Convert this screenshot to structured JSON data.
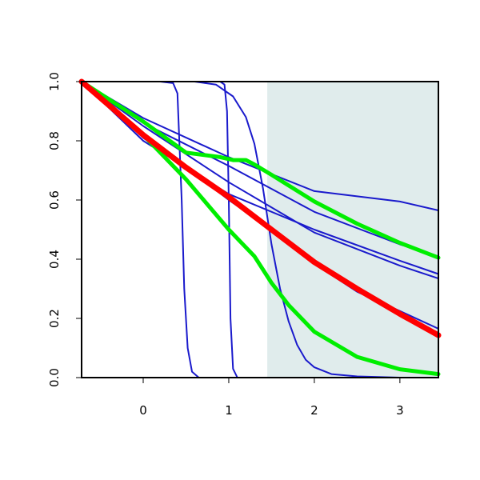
{
  "chart_data": {
    "type": "line",
    "title": "",
    "xlabel": "",
    "ylabel": "",
    "xlim": [
      -0.72,
      3.45
    ],
    "ylim": [
      0,
      1
    ],
    "x_ticks": [
      "0",
      "1",
      "2",
      "3"
    ],
    "y_ticks": [
      "0.0",
      "0.2",
      "0.4",
      "0.6",
      "0.8",
      "1.0"
    ],
    "shaded_region": {
      "x_from": 1.45,
      "x_to": 3.45,
      "color": "#e0ecec"
    },
    "colors": {
      "blue": "#1a1acc",
      "red": "#ff0000",
      "green": "#00ee00"
    },
    "series": [
      {
        "color": "blue",
        "width": 2,
        "points": [
          [
            -0.72,
            1.0
          ],
          [
            0.0,
            0.877
          ],
          [
            1.0,
            0.745
          ],
          [
            2.0,
            0.63
          ],
          [
            3.0,
            0.595
          ],
          [
            3.45,
            0.565
          ]
        ]
      },
      {
        "color": "blue",
        "width": 2,
        "points": [
          [
            -0.72,
            1.0
          ],
          [
            0.0,
            0.86
          ],
          [
            1.0,
            0.715
          ],
          [
            2.0,
            0.56
          ],
          [
            3.0,
            0.45
          ],
          [
            3.45,
            0.41
          ]
        ]
      },
      {
        "color": "blue",
        "width": 2,
        "points": [
          [
            -0.72,
            1.0
          ],
          [
            0.0,
            0.85
          ],
          [
            1.0,
            0.66
          ],
          [
            2.0,
            0.49
          ],
          [
            3.0,
            0.378
          ],
          [
            3.45,
            0.335
          ]
        ]
      },
      {
        "color": "blue",
        "width": 2,
        "points": [
          [
            -0.72,
            1.0
          ],
          [
            0.0,
            0.8
          ],
          [
            1.0,
            0.62
          ],
          [
            2.0,
            0.5
          ],
          [
            3.0,
            0.395
          ],
          [
            3.45,
            0.35
          ]
        ]
      },
      {
        "color": "blue",
        "width": 2,
        "points": [
          [
            -0.72,
            1.0
          ],
          [
            0.0,
            0.81
          ],
          [
            0.5,
            0.71
          ],
          [
            1.0,
            0.6
          ],
          [
            1.5,
            0.5
          ],
          [
            2.0,
            0.385
          ],
          [
            2.5,
            0.29
          ],
          [
            3.0,
            0.225
          ],
          [
            3.45,
            0.165
          ]
        ]
      },
      {
        "color": "blue",
        "width": 2,
        "points": [
          [
            -0.72,
            1.0
          ],
          [
            0.2,
            1.0
          ],
          [
            0.35,
            0.995
          ],
          [
            0.4,
            0.96
          ],
          [
            0.45,
            0.6
          ],
          [
            0.48,
            0.3
          ],
          [
            0.52,
            0.1
          ],
          [
            0.57,
            0.02
          ],
          [
            0.65,
            0.0
          ],
          [
            3.45,
            0.0
          ]
        ]
      },
      {
        "color": "blue",
        "width": 2,
        "points": [
          [
            -0.72,
            1.0
          ],
          [
            0.9,
            1.0
          ],
          [
            0.95,
            0.99
          ],
          [
            0.98,
            0.9
          ],
          [
            1.0,
            0.6
          ],
          [
            1.02,
            0.2
          ],
          [
            1.05,
            0.03
          ],
          [
            1.1,
            0.0
          ],
          [
            3.45,
            0.0
          ]
        ]
      },
      {
        "color": "blue",
        "width": 2,
        "points": [
          [
            -0.72,
            1.0
          ],
          [
            0.6,
            1.0
          ],
          [
            0.85,
            0.99
          ],
          [
            1.05,
            0.95
          ],
          [
            1.2,
            0.88
          ],
          [
            1.3,
            0.79
          ],
          [
            1.4,
            0.64
          ],
          [
            1.5,
            0.45
          ],
          [
            1.6,
            0.3
          ],
          [
            1.7,
            0.19
          ],
          [
            1.8,
            0.11
          ],
          [
            1.9,
            0.06
          ],
          [
            2.0,
            0.035
          ],
          [
            2.2,
            0.012
          ],
          [
            2.5,
            0.004
          ],
          [
            3.0,
            0.0
          ],
          [
            3.45,
            0.0
          ]
        ]
      },
      {
        "color": "green",
        "width": 5,
        "points": [
          [
            -0.72,
            1.0
          ],
          [
            0.0,
            0.865
          ],
          [
            0.5,
            0.76
          ],
          [
            0.9,
            0.745
          ],
          [
            1.05,
            0.735
          ],
          [
            1.2,
            0.735
          ],
          [
            1.3,
            0.72
          ],
          [
            1.5,
            0.685
          ],
          [
            2.0,
            0.595
          ],
          [
            2.5,
            0.52
          ],
          [
            3.0,
            0.455
          ],
          [
            3.45,
            0.405
          ]
        ]
      },
      {
        "color": "green",
        "width": 5,
        "points": [
          [
            -0.72,
            1.0
          ],
          [
            0.0,
            0.82
          ],
          [
            0.5,
            0.67
          ],
          [
            1.0,
            0.5
          ],
          [
            1.3,
            0.41
          ],
          [
            1.5,
            0.32
          ],
          [
            1.7,
            0.245
          ],
          [
            2.0,
            0.155
          ],
          [
            2.5,
            0.07
          ],
          [
            3.0,
            0.028
          ],
          [
            3.45,
            0.012
          ]
        ]
      },
      {
        "color": "red",
        "width": 7,
        "points": [
          [
            -0.72,
            1.0
          ],
          [
            0.0,
            0.82
          ],
          [
            0.5,
            0.71
          ],
          [
            1.0,
            0.61
          ],
          [
            1.5,
            0.5
          ],
          [
            2.0,
            0.39
          ],
          [
            2.5,
            0.3
          ],
          [
            3.0,
            0.215
          ],
          [
            3.45,
            0.143
          ]
        ]
      }
    ]
  }
}
